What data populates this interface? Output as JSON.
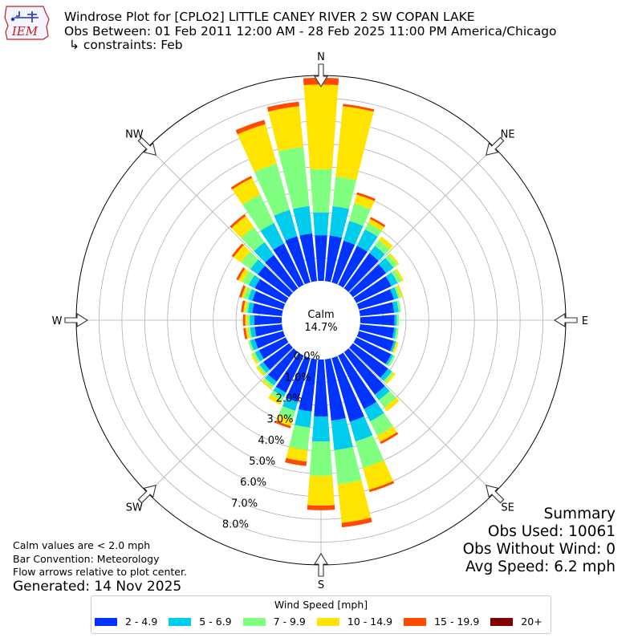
{
  "header": {
    "logo_text": "IEM",
    "title_line1": "Windrose Plot for [CPLO2] LITTLE CANEY RIVER 2 SW COPAN LAKE",
    "title_line2": "Obs Between: 01 Feb 2011 12:00 AM - 28 Feb 2025 11:00 PM America/Chicago",
    "title_line3": "↳ constraints: Feb"
  },
  "footnotes": {
    "line1": "Calm values are < 2.0 mph",
    "line2": "Bar Convention: Meteorology",
    "line3": "Flow arrows relative to plot center.",
    "generated": "Generated: 14 Nov 2025"
  },
  "summary": {
    "title": "Summary",
    "obs_used": "Obs Used: 10061",
    "obs_without_wind": "Obs Without Wind: 0",
    "avg_speed": "Avg Speed: 6.2 mph"
  },
  "colors": {
    "bins": [
      "#0033ff",
      "#00ccee",
      "#80ff80",
      "#ffe400",
      "#ff4a00",
      "#800000"
    ],
    "grid": "#b0b0b0",
    "arrow_fill": "#ffffff",
    "arrow_stroke": "#333333"
  },
  "chart_data": {
    "type": "windrose",
    "calm_label": "Calm",
    "calm_value": "14.7%",
    "calm_percent": 14.7,
    "r_max": 9.0,
    "radial_ticks": [
      "0.0%",
      "1.0%",
      "2.0%",
      "3.0%",
      "4.0%",
      "5.0%",
      "6.0%",
      "7.0%",
      "8.0%"
    ],
    "radial_tick_values": [
      0,
      1,
      2,
      3,
      4,
      5,
      6,
      7,
      8
    ],
    "direction_labels": [
      "N",
      "NE",
      "E",
      "SE",
      "S",
      "SW",
      "W",
      "NW"
    ],
    "directions_deg": [
      0,
      10,
      20,
      30,
      40,
      50,
      60,
      70,
      80,
      90,
      100,
      110,
      120,
      130,
      140,
      150,
      160,
      170,
      180,
      190,
      200,
      210,
      220,
      230,
      240,
      250,
      260,
      270,
      280,
      290,
      300,
      310,
      320,
      330,
      340,
      350
    ],
    "legend_title": "Wind Speed [mph]",
    "bins": [
      "2 - 4.9",
      "5 - 6.9",
      "7 - 9.9",
      "10 - 14.9",
      "15 - 19.9",
      "20+"
    ],
    "cumulative_percent": [
      [
        2.0,
        3.0,
        4.9,
        8.6,
        8.9,
        8.9
      ],
      [
        2.0,
        3.3,
        4.6,
        7.7,
        7.8,
        7.8
      ],
      [
        1.9,
        2.8,
        3.6,
        4.0,
        4.1,
        4.1
      ],
      [
        1.9,
        2.7,
        3.0,
        3.2,
        3.3,
        3.3
      ],
      [
        1.9,
        2.3,
        2.6,
        2.8,
        2.8,
        2.8
      ],
      [
        1.8,
        2.2,
        2.4,
        2.5,
        2.5,
        2.5
      ],
      [
        1.7,
        2.0,
        2.2,
        2.3,
        2.3,
        2.3
      ],
      [
        1.6,
        1.8,
        1.9,
        2.0,
        2.0,
        2.0
      ],
      [
        1.5,
        1.7,
        1.8,
        1.8,
        1.8,
        1.8
      ],
      [
        1.5,
        1.6,
        1.7,
        1.7,
        1.7,
        1.7
      ],
      [
        1.5,
        1.6,
        1.7,
        1.7,
        1.7,
        1.7
      ],
      [
        1.6,
        1.7,
        1.7,
        1.8,
        1.8,
        1.8
      ],
      [
        1.7,
        1.8,
        1.9,
        1.9,
        1.9,
        1.9
      ],
      [
        1.9,
        2.1,
        2.2,
        2.3,
        2.3,
        2.3
      ],
      [
        2.3,
        2.6,
        3.0,
        3.2,
        3.2,
        3.2
      ],
      [
        2.6,
        3.2,
        3.9,
        4.2,
        4.3,
        4.3
      ],
      [
        2.9,
        3.8,
        5.0,
        6.0,
        6.1,
        6.1
      ],
      [
        2.7,
        4.0,
        5.5,
        7.2,
        7.4,
        7.4
      ],
      [
        2.5,
        3.6,
        5.1,
        6.4,
        6.6,
        6.6
      ],
      [
        2.3,
        3.0,
        4.0,
        4.5,
        4.7,
        4.7
      ],
      [
        2.0,
        2.4,
        2.8,
        3.1,
        3.2,
        3.2
      ],
      [
        1.8,
        2.0,
        2.2,
        2.4,
        2.4,
        2.4
      ],
      [
        1.6,
        1.8,
        1.9,
        2.0,
        2.0,
        2.0
      ],
      [
        1.4,
        1.6,
        1.7,
        1.8,
        1.8,
        1.8
      ],
      [
        1.3,
        1.5,
        1.6,
        1.7,
        1.7,
        1.7
      ],
      [
        1.3,
        1.5,
        1.6,
        1.6,
        1.6,
        1.6
      ],
      [
        1.2,
        1.4,
        1.5,
        1.6,
        1.7,
        1.7
      ],
      [
        1.2,
        1.4,
        1.5,
        1.6,
        1.7,
        1.7
      ],
      [
        1.3,
        1.5,
        1.6,
        1.7,
        1.8,
        1.8
      ],
      [
        1.4,
        1.6,
        1.8,
        1.9,
        2.0,
        2.0
      ],
      [
        1.5,
        1.8,
        2.1,
        2.3,
        2.4,
        2.4
      ],
      [
        1.7,
        2.1,
        2.6,
        3.0,
        3.1,
        3.1
      ],
      [
        1.8,
        2.5,
        3.3,
        3.9,
        4.0,
        4.0
      ],
      [
        2.0,
        3.0,
        4.4,
        5.2,
        5.3,
        5.3
      ],
      [
        2.1,
        3.3,
        5.4,
        7.2,
        7.4,
        7.4
      ],
      [
        2.1,
        3.3,
        5.9,
        7.7,
        7.9,
        7.9
      ]
    ]
  }
}
